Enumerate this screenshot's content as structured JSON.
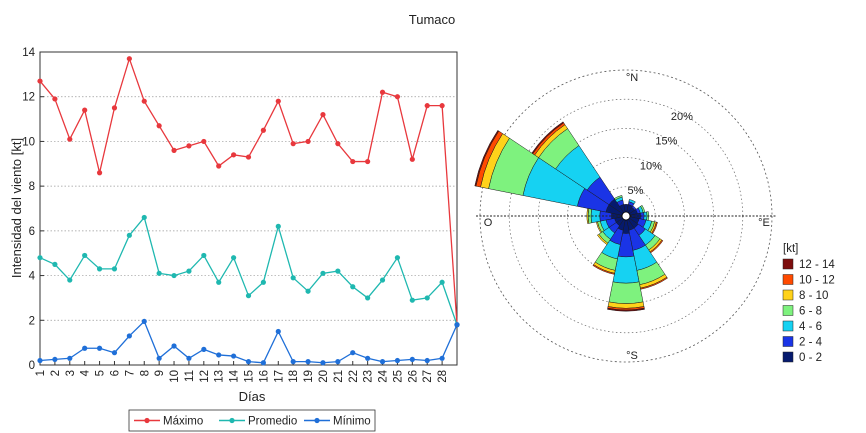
{
  "figure": {
    "title": "Tumaco"
  },
  "chart_data": [
    {
      "type": "line",
      "xlabel": "Días",
      "ylabel": "Intensidad del viento [kt]",
      "xlim": [
        1,
        29
      ],
      "ylim": [
        0,
        14
      ],
      "x_ticks": [
        "1",
        "2",
        "3",
        "4",
        "5",
        "6",
        "7",
        "8",
        "9",
        "10",
        "11",
        "12",
        "13",
        "14",
        "15",
        "16",
        "17",
        "18",
        "19",
        "20",
        "21",
        "22",
        "23",
        "24",
        "25",
        "26",
        "27",
        "28"
      ],
      "y_ticks": [
        "0",
        "2",
        "4",
        "6",
        "8",
        "10",
        "12",
        "14"
      ],
      "grid": "horizontal-dotted",
      "legend_position": "bottom",
      "series": [
        {
          "name": "Máximo",
          "color": "#e8383d",
          "x": [
            1,
            2,
            3,
            4,
            5,
            6,
            7,
            8,
            9,
            10,
            11,
            12,
            13,
            14,
            15,
            16,
            17,
            18,
            19,
            20,
            21,
            22,
            23,
            24,
            25,
            26,
            27,
            28,
            29
          ],
          "values": [
            12.7,
            11.9,
            10.1,
            11.4,
            8.6,
            11.5,
            13.7,
            11.8,
            10.7,
            9.6,
            9.8,
            10.0,
            8.9,
            9.4,
            9.3,
            10.5,
            11.8,
            9.9,
            10.0,
            11.2,
            9.9,
            9.1,
            9.1,
            12.2,
            12.0,
            9.2,
            11.6,
            11.6,
            1.8
          ]
        },
        {
          "name": "Promedio",
          "color": "#1fb8b0",
          "x": [
            1,
            2,
            3,
            4,
            5,
            6,
            7,
            8,
            9,
            10,
            11,
            12,
            13,
            14,
            15,
            16,
            17,
            18,
            19,
            20,
            21,
            22,
            23,
            24,
            25,
            26,
            27,
            28,
            29
          ],
          "values": [
            4.8,
            4.5,
            3.8,
            4.9,
            4.3,
            4.3,
            5.8,
            6.6,
            4.1,
            4.0,
            4.2,
            4.9,
            3.7,
            4.8,
            3.1,
            3.7,
            6.2,
            3.9,
            3.3,
            4.1,
            4.2,
            3.5,
            3.0,
            3.8,
            4.8,
            2.9,
            3.0,
            3.7,
            1.8
          ]
        },
        {
          "name": "Mínimo",
          "color": "#1f6fd8",
          "x": [
            1,
            2,
            3,
            4,
            5,
            6,
            7,
            8,
            9,
            10,
            11,
            12,
            13,
            14,
            15,
            16,
            17,
            18,
            19,
            20,
            21,
            22,
            23,
            24,
            25,
            26,
            27,
            28,
            29
          ],
          "values": [
            0.2,
            0.25,
            0.3,
            0.75,
            0.75,
            0.55,
            1.3,
            1.95,
            0.3,
            0.85,
            0.3,
            0.7,
            0.45,
            0.4,
            0.15,
            0.1,
            1.5,
            0.15,
            0.15,
            0.1,
            0.15,
            0.55,
            0.3,
            0.15,
            0.2,
            0.25,
            0.2,
            0.3,
            1.8
          ]
        }
      ]
    },
    {
      "type": "polar-windrose",
      "directions_labels": {
        "n": "°N",
        "e": "°E",
        "s": "°S",
        "w": "O"
      },
      "rings": [
        5,
        10,
        15,
        20,
        25
      ],
      "ring_labels": [
        "5%",
        "10%",
        "15%",
        "20%"
      ],
      "legend_title": "[kt]",
      "bins": [
        {
          "label": "12 - 14",
          "color": "#7d0d0d"
        },
        {
          "label": "10 - 12",
          "color": "#ff4a00"
        },
        {
          "label": "8 - 10",
          "color": "#ffd21a"
        },
        {
          "label": "6 - 8",
          "color": "#7ef27e"
        },
        {
          "label": "4 - 6",
          "color": "#16d2f2"
        },
        {
          "label": "2 - 4",
          "color": "#1a34e6"
        },
        {
          "label": "0 - 2",
          "color": "#061a6e"
        }
      ],
      "sectors": [
        {
          "dir": 0,
          "values": [
            2.0,
            0,
            0,
            0,
            0,
            0,
            0
          ]
        },
        {
          "dir": 22.5,
          "values": [
            2.0,
            0.5,
            0.4,
            0,
            0,
            0,
            0
          ]
        },
        {
          "dir": 45,
          "values": [
            1.8,
            0.3,
            0,
            0,
            0,
            0,
            0
          ]
        },
        {
          "dir": 67.5,
          "values": [
            2.0,
            0.5,
            0.5,
            0.3,
            0,
            0,
            0
          ]
        },
        {
          "dir": 90,
          "values": [
            2.5,
            0.6,
            0.5,
            0.3,
            0,
            0,
            0
          ]
        },
        {
          "dir": 112.5,
          "values": [
            2.3,
            1.2,
            1.0,
            0.5,
            0.3,
            0.2,
            0
          ]
        },
        {
          "dir": 135,
          "values": [
            2.5,
            1.5,
            2.0,
            1.0,
            0.4,
            0.2,
            0
          ]
        },
        {
          "dir": 157.5,
          "values": [
            2.5,
            3.5,
            3.5,
            2.5,
            0.6,
            0.2,
            0
          ]
        },
        {
          "dir": 180,
          "values": [
            3.0,
            4.0,
            4.5,
            3.5,
            0.8,
            0.3,
            0.2
          ]
        },
        {
          "dir": 202.5,
          "values": [
            2.5,
            2.5,
            2.5,
            2.0,
            0.5,
            0.2,
            0
          ]
        },
        {
          "dir": 225,
          "values": [
            2.0,
            1.5,
            1.3,
            0.8,
            0.3,
            0,
            0
          ]
        },
        {
          "dir": 247.5,
          "values": [
            2.0,
            1.5,
            1.0,
            0.5,
            0.2,
            0,
            0
          ]
        },
        {
          "dir": 270,
          "values": [
            2.5,
            2.0,
            1.5,
            0.5,
            0.2,
            0,
            0
          ]
        },
        {
          "dir": 292.5,
          "values": [
            3.5,
            5.0,
            9.5,
            6.0,
            1.4,
            0.8,
            0.2
          ]
        },
        {
          "dir": 315,
          "values": [
            3.5,
            4.5,
            6.5,
            3.5,
            0.8,
            0.4,
            0.2
          ]
        },
        {
          "dir": 337.5,
          "values": [
            2.0,
            0.8,
            0.5,
            0.3,
            0,
            0,
            0
          ]
        }
      ]
    }
  ]
}
